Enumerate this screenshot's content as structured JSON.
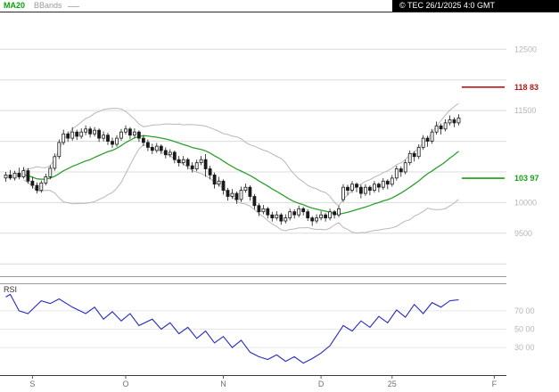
{
  "header": {
    "ma_label": "MA20",
    "bbands_label": "BBands",
    "copyright": "© TEC 26/1/2025 4:0 GMT"
  },
  "chart_data": {
    "type": "candlestick",
    "candle_color": "#1a1a1a",
    "x_axis": {
      "tick_labels": [
        "S",
        "O",
        "N",
        "D",
        "25",
        "F"
      ],
      "tick_indices": [
        6,
        27,
        49,
        71,
        87,
        110
      ]
    },
    "y_axis": {
      "range": [
        8800,
        13100
      ],
      "grid_min": 9000,
      "grid_max": 12500,
      "grid_step": 500,
      "labels": [
        {
          "value": 12500,
          "text": "12500"
        },
        {
          "value": 11500,
          "text": "11500"
        },
        {
          "value": 10000,
          "text": "10000"
        },
        {
          "value": 9500,
          "text": "9500"
        }
      ]
    },
    "levels": [
      {
        "name": "resistance",
        "value": 11883,
        "text": "118 83",
        "color": "#c01414"
      },
      {
        "name": "support",
        "value": 10397,
        "text": "103 97",
        "color": "#13a013"
      }
    ],
    "overlays": {
      "ma_period": 20,
      "ma_color": "#2ca02c",
      "bb_period": 20,
      "bb_mult": 2,
      "bb_color": "#b8b8b8"
    },
    "candles": [
      [
        10400,
        10500,
        10340,
        10450
      ],
      [
        10450,
        10530,
        10370,
        10400
      ],
      [
        10400,
        10520,
        10360,
        10480
      ],
      [
        10480,
        10570,
        10380,
        10420
      ],
      [
        10420,
        10580,
        10390,
        10520
      ],
      [
        10520,
        10560,
        10310,
        10350
      ],
      [
        10350,
        10420,
        10230,
        10280
      ],
      [
        10280,
        10330,
        10150,
        10200
      ],
      [
        10200,
        10360,
        10160,
        10320
      ],
      [
        10320,
        10470,
        10280,
        10420
      ],
      [
        10420,
        10610,
        10380,
        10560
      ],
      [
        10560,
        10800,
        10520,
        10750
      ],
      [
        10750,
        11030,
        10710,
        10980
      ],
      [
        10980,
        11190,
        10940,
        11120
      ],
      [
        11120,
        11160,
        10990,
        11050
      ],
      [
        11050,
        11230,
        11010,
        11150
      ],
      [
        11150,
        11190,
        11020,
        11080
      ],
      [
        11080,
        11210,
        11040,
        11150
      ],
      [
        11150,
        11260,
        11100,
        11200
      ],
      [
        11200,
        11240,
        11060,
        11120
      ],
      [
        11120,
        11230,
        11080,
        11180
      ],
      [
        11180,
        11210,
        10990,
        11050
      ],
      [
        11050,
        11160,
        11000,
        11100
      ],
      [
        11100,
        11140,
        10940,
        11000
      ],
      [
        11000,
        11060,
        10890,
        10950
      ],
      [
        10950,
        11100,
        10910,
        11050
      ],
      [
        11050,
        11200,
        11010,
        11150
      ],
      [
        11150,
        11260,
        11110,
        11200
      ],
      [
        11200,
        11230,
        11040,
        11100
      ],
      [
        11100,
        11210,
        11060,
        11150
      ],
      [
        11150,
        11180,
        10990,
        11050
      ],
      [
        11050,
        11100,
        10920,
        10980
      ],
      [
        10980,
        11030,
        10840,
        10900
      ],
      [
        10900,
        10960,
        10790,
        10850
      ],
      [
        10850,
        10970,
        10810,
        10920
      ],
      [
        10920,
        10950,
        10790,
        10850
      ],
      [
        10850,
        10900,
        10720,
        10780
      ],
      [
        10780,
        10870,
        10740,
        10820
      ],
      [
        10820,
        10850,
        10640,
        10700
      ],
      [
        10700,
        10760,
        10590,
        10650
      ],
      [
        10650,
        10760,
        10610,
        10700
      ],
      [
        10700,
        10730,
        10540,
        10600
      ],
      [
        10600,
        10660,
        10490,
        10550
      ],
      [
        10550,
        10700,
        10510,
        10650
      ],
      [
        10650,
        10760,
        10610,
        10700
      ],
      [
        10700,
        10790,
        10420,
        10550
      ],
      [
        10550,
        10600,
        10380,
        10450
      ],
      [
        10450,
        10490,
        10230,
        10300
      ],
      [
        10300,
        10420,
        10260,
        10350
      ],
      [
        10350,
        10380,
        10130,
        10200
      ],
      [
        10200,
        10240,
        10030,
        10100
      ],
      [
        10100,
        10220,
        10060,
        10150
      ],
      [
        10150,
        10180,
        9980,
        10050
      ],
      [
        10050,
        10260,
        10010,
        10200
      ],
      [
        10200,
        10310,
        10160,
        10250
      ],
      [
        10250,
        10280,
        10030,
        10100
      ],
      [
        10100,
        10140,
        9890,
        9950
      ],
      [
        9950,
        9990,
        9780,
        9850
      ],
      [
        9850,
        9960,
        9810,
        9900
      ],
      [
        9900,
        9930,
        9740,
        9800
      ],
      [
        9800,
        9850,
        9690,
        9750
      ],
      [
        9750,
        9860,
        9710,
        9800
      ],
      [
        9800,
        9830,
        9640,
        9700
      ],
      [
        9700,
        9810,
        9660,
        9750
      ],
      [
        9750,
        9900,
        9710,
        9850
      ],
      [
        9850,
        9890,
        9740,
        9800
      ],
      [
        9800,
        9950,
        9760,
        9900
      ],
      [
        9900,
        9930,
        9790,
        9850
      ],
      [
        9850,
        9890,
        9700,
        9750
      ],
      [
        9750,
        9780,
        9620,
        9700
      ],
      [
        9700,
        9810,
        9660,
        9750
      ],
      [
        9750,
        9860,
        9710,
        9800
      ],
      [
        9800,
        9830,
        9690,
        9750
      ],
      [
        9750,
        9900,
        9710,
        9850
      ],
      [
        9850,
        9880,
        9740,
        9800
      ],
      [
        9800,
        9950,
        9760,
        9900
      ],
      [
        10050,
        10300,
        10010,
        10250
      ],
      [
        10250,
        10290,
        10120,
        10200
      ],
      [
        10200,
        10350,
        10160,
        10300
      ],
      [
        10300,
        10330,
        10170,
        10250
      ],
      [
        10250,
        10290,
        10070,
        10150
      ],
      [
        10150,
        10300,
        10110,
        10250
      ],
      [
        10250,
        10280,
        10120,
        10200
      ],
      [
        10200,
        10350,
        10160,
        10300
      ],
      [
        10300,
        10330,
        10170,
        10250
      ],
      [
        10250,
        10400,
        10210,
        10350
      ],
      [
        10350,
        10380,
        10220,
        10300
      ],
      [
        10300,
        10450,
        10260,
        10400
      ],
      [
        10400,
        10600,
        10360,
        10550
      ],
      [
        10550,
        10590,
        10420,
        10500
      ],
      [
        10500,
        10700,
        10460,
        10650
      ],
      [
        10650,
        10850,
        10610,
        10800
      ],
      [
        10800,
        10840,
        10670,
        10750
      ],
      [
        10750,
        10950,
        10710,
        10900
      ],
      [
        10900,
        11100,
        10860,
        11050
      ],
      [
        11050,
        11090,
        10910,
        11000
      ],
      [
        11000,
        11200,
        10960,
        11150
      ],
      [
        11150,
        11320,
        11110,
        11250
      ],
      [
        11250,
        11290,
        11110,
        11200
      ],
      [
        11200,
        11360,
        11160,
        11300
      ],
      [
        11300,
        11420,
        11260,
        11350
      ],
      [
        11350,
        11390,
        11230,
        11300
      ],
      [
        11300,
        11440,
        11260,
        11380
      ]
    ],
    "rsi_panel": {
      "label": "RSI",
      "period": 14,
      "range": [
        0,
        100
      ],
      "line_color": "#2929c0",
      "gridlines": [
        70,
        50,
        30
      ],
      "labels": [
        {
          "value": 70,
          "text": "70 00"
        },
        {
          "value": 50,
          "text": "50 00"
        },
        {
          "value": 30,
          "text": "30 00"
        }
      ],
      "points": [
        [
          0,
          85
        ],
        [
          1,
          88
        ],
        [
          3,
          70
        ],
        [
          5,
          67
        ],
        [
          8,
          81
        ],
        [
          10,
          78
        ],
        [
          12,
          83
        ],
        [
          15,
          74
        ],
        [
          18,
          67
        ],
        [
          20,
          74
        ],
        [
          22,
          61
        ],
        [
          24,
          69
        ],
        [
          26,
          59
        ],
        [
          28,
          67
        ],
        [
          30,
          54
        ],
        [
          33,
          61
        ],
        [
          35,
          50
        ],
        [
          37,
          57
        ],
        [
          39,
          45
        ],
        [
          41,
          52
        ],
        [
          43,
          40
        ],
        [
          45,
          48
        ],
        [
          47,
          35
        ],
        [
          49,
          42
        ],
        [
          51,
          30
        ],
        [
          53,
          38
        ],
        [
          55,
          25
        ],
        [
          57,
          20
        ],
        [
          59,
          17
        ],
        [
          61,
          22
        ],
        [
          63,
          15
        ],
        [
          65,
          20
        ],
        [
          67,
          13
        ],
        [
          69,
          18
        ],
        [
          71,
          24
        ],
        [
          73,
          32
        ],
        [
          76,
          54
        ],
        [
          78,
          48
        ],
        [
          80,
          59
        ],
        [
          82,
          52
        ],
        [
          84,
          64
        ],
        [
          86,
          57
        ],
        [
          88,
          71
        ],
        [
          90,
          63
        ],
        [
          92,
          77
        ],
        [
          94,
          67
        ],
        [
          96,
          79
        ],
        [
          98,
          74
        ],
        [
          100,
          81
        ],
        [
          102,
          82
        ]
      ]
    }
  }
}
